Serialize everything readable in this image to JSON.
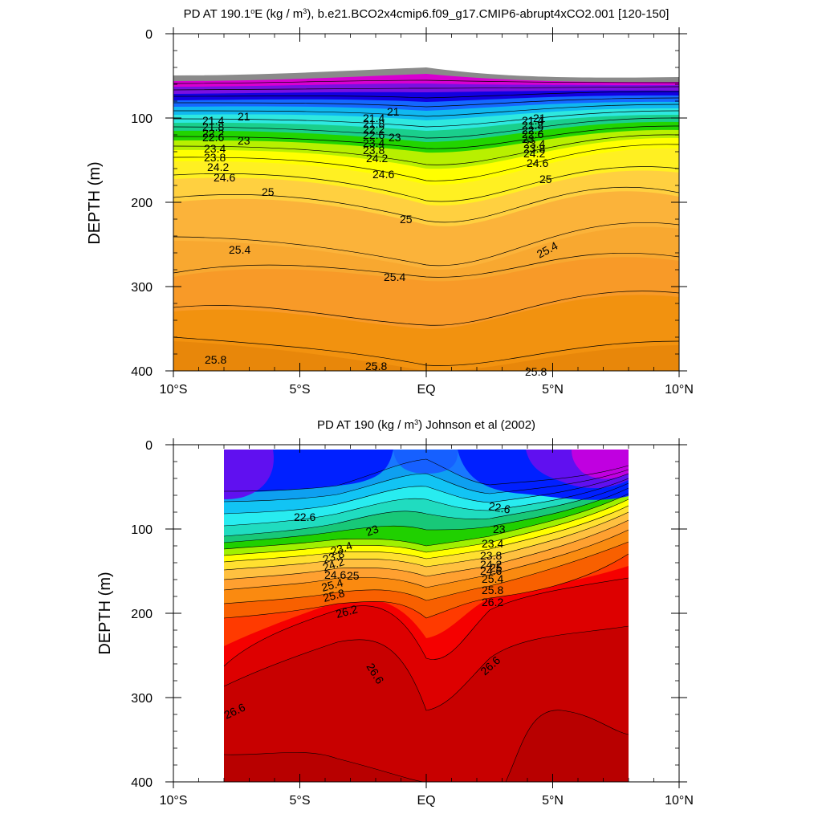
{
  "figure": {
    "panels": [
      {
        "title_main": "PD AT 190.1",
        "title_deg": "o",
        "title_mid": "E (kg / m",
        "title_sup": "3",
        "title_end": "), b.e21.BCO2x4cmip6.f09_g17.CMIP6-abrupt4xCO2.001 [120-150]",
        "ylabel": "DEPTH (m)"
      },
      {
        "title_main": "PD AT 190 (kg / m",
        "title_sup": "3",
        "title_end": ") Johnson et al (2002)",
        "ylabel": "DEPTH (m)"
      }
    ]
  },
  "chart_data": [
    {
      "type": "contour",
      "title": "PD AT 190.1°E (kg / m3), b.e21.BCO2x4cmip6.f09_g17.CMIP6-abrupt4xCO2.001 [120-150]",
      "xlabel": "",
      "ylabel": "DEPTH (m)",
      "xlim": [
        -10,
        10
      ],
      "ylim": [
        400,
        0
      ],
      "x_tick_values": [
        -10,
        -5,
        0,
        5,
        10
      ],
      "x_tick_labels": [
        "10°S",
        "5°S",
        "EQ",
        "5°N",
        "10°N"
      ],
      "y_ticks": [
        0,
        100,
        200,
        300,
        400
      ],
      "contour_interval": 0.2,
      "data_extent_lat": [
        -10,
        10
      ],
      "surface_depth_m": {
        "lat": [
          -10,
          -5,
          0,
          5,
          10
        ],
        "depth": [
          96,
          97,
          88,
          100,
          98
        ]
      },
      "isopycnals": [
        {
          "value": 21,
          "lat": [
            -10,
            -7,
            -3,
            0,
            3,
            7,
            10
          ],
          "depth": [
            102,
            102,
            98,
            94,
            100,
            104,
            103
          ]
        },
        {
          "value": 23,
          "lat": [
            -10,
            -7,
            -3,
            0,
            3,
            7,
            10
          ],
          "depth": [
            128,
            126,
            120,
            122,
            126,
            128,
            126
          ]
        },
        {
          "value": 24.2,
          "lat": [
            -10,
            -7,
            -3,
            0,
            3,
            7,
            10
          ],
          "depth": [
            150,
            150,
            148,
            150,
            144,
            140,
            140
          ]
        },
        {
          "value": 24.6,
          "lat": [
            -10,
            -7,
            -3,
            0,
            3,
            7,
            10
          ],
          "depth": [
            162,
            158,
            160,
            175,
            160,
            150,
            148
          ]
        },
        {
          "value": 25,
          "lat": [
            -10,
            -7,
            -3,
            0,
            3,
            7,
            10
          ],
          "depth": [
            180,
            178,
            182,
            222,
            185,
            168,
            170
          ]
        },
        {
          "value": 25.4,
          "lat": [
            -10,
            -7,
            -3,
            0,
            3,
            7,
            10
          ],
          "depth": [
            240,
            255,
            262,
            285,
            250,
            225,
            255
          ]
        },
        {
          "value": 25.4,
          "lat": [
            -10,
            -7,
            -3,
            0,
            3,
            7,
            10
          ],
          "depth": [
            328,
            305,
            320,
            340,
            318,
            290,
            310
          ]
        },
        {
          "value": 25.8,
          "lat": [
            -10,
            -7,
            -3,
            0,
            3,
            7,
            10
          ],
          "depth": [
            390,
            385,
            392,
            402,
            395,
            375,
            380
          ]
        }
      ],
      "contour_labels": [
        "21",
        "21.4",
        "21.8",
        "22.2",
        "22.6",
        "23",
        "23.4",
        "23.8",
        "24.2",
        "24.6",
        "25",
        "25.4",
        "25.8"
      ]
    },
    {
      "type": "contour",
      "title": "PD AT 190 (kg / m3) Johnson et al (2002)",
      "xlabel": "",
      "ylabel": "DEPTH (m)",
      "xlim": [
        -10,
        10
      ],
      "ylim": [
        400,
        0
      ],
      "x_tick_values": [
        -10,
        -5,
        0,
        5,
        10
      ],
      "x_tick_labels": [
        "10°S",
        "5°S",
        "EQ",
        "5°N",
        "10°N"
      ],
      "y_ticks": [
        0,
        100,
        200,
        300,
        400
      ],
      "contour_interval": 0.2,
      "data_extent_lat": [
        -8,
        8
      ],
      "data_extent_depth": [
        6,
        400
      ],
      "isopycnals": [
        {
          "value": 22.6,
          "lat": [
            -8,
            -5,
            -2,
            0,
            2,
            5,
            8
          ],
          "depth": [
            80,
            75,
            60,
            40,
            55,
            70,
            60
          ]
        },
        {
          "value": 23,
          "lat": [
            -8,
            -5,
            -2,
            0,
            2,
            5,
            8
          ],
          "depth": [
            100,
            95,
            85,
            70,
            85,
            95,
            80
          ]
        },
        {
          "value": 24.2,
          "lat": [
            -8,
            -5,
            -2,
            0,
            2,
            5,
            8
          ],
          "depth": [
            150,
            145,
            140,
            145,
            135,
            130,
            115
          ]
        },
        {
          "value": 25.4,
          "lat": [
            -8,
            -5,
            -2,
            0,
            2,
            5,
            8
          ],
          "depth": [
            175,
            172,
            165,
            172,
            160,
            150,
            140
          ]
        },
        {
          "value": 26.2,
          "lat": [
            -8,
            -5,
            -2,
            0,
            2,
            5,
            8
          ],
          "depth": [
            210,
            205,
            190,
            220,
            190,
            195,
            180
          ]
        },
        {
          "value": 26.6,
          "lat": [
            -8,
            -6,
            -2,
            0,
            2,
            5,
            8
          ],
          "depth": [
            300,
            280,
            240,
            320,
            280,
            240,
            220
          ]
        },
        {
          "value": 26.8,
          "lat": [
            -8,
            -5,
            -2,
            0,
            2,
            5,
            8
          ],
          "depth": [
            372,
            365,
            370,
            400,
            380,
            340,
            345
          ]
        }
      ],
      "contour_labels": [
        "22.6",
        "23",
        "23.4",
        "23.8",
        "24.2",
        "24.6",
        "25",
        "25.4",
        "25.8",
        "26.2",
        "26.6"
      ]
    }
  ]
}
